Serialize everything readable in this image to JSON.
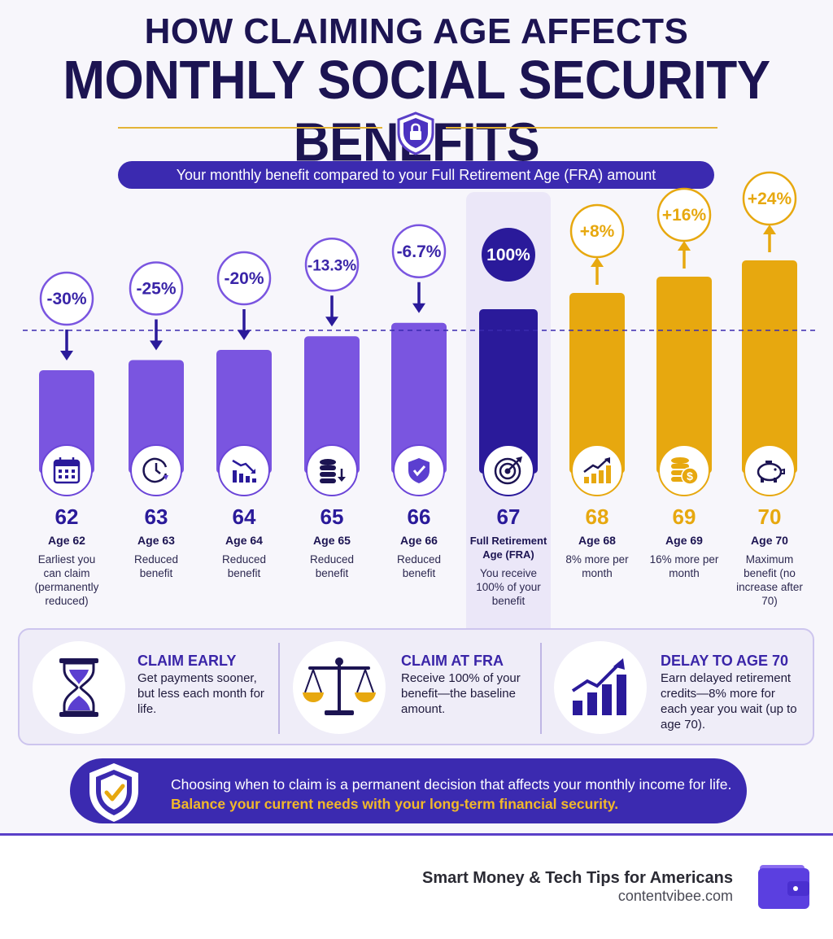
{
  "header": {
    "title_line1": "HOW CLAIMING AGE AFFECTS",
    "title_line2": "MONTHLY SOCIAL SECURITY BENEFITS",
    "subtitle": "Your monthly benefit compared to your Full Retirement Age (FRA) amount"
  },
  "chart_data": {
    "type": "bar",
    "categories": [
      "62",
      "63",
      "64",
      "65",
      "66",
      "67",
      "68",
      "69",
      "70"
    ],
    "values": [
      70,
      75,
      80,
      86.7,
      93.3,
      100,
      108,
      116,
      124
    ],
    "data_labels": [
      "-30%",
      "-25%",
      "-20%",
      "-13.3%",
      "-6.7%",
      "100%",
      "+8%",
      "+16%",
      "+24%"
    ],
    "reference_line": 100,
    "age_labels": [
      "Age 62",
      "Age 63",
      "Age 64",
      "Age 65",
      "Age 66",
      "Full Retirement Age (FRA)",
      "Age 68",
      "Age 69",
      "Age 70"
    ],
    "descriptions": [
      "Earliest you can claim (permanently reduced)",
      "Reduced benefit",
      "Reduced benefit",
      "Reduced benefit",
      "Reduced benefit",
      "You receive 100% of your benefit",
      "8% more per month",
      "16% more per month",
      "Maximum benefit (no increase after 70)"
    ],
    "icons": [
      "calendar-icon",
      "clock-icon",
      "declining-chart-icon",
      "coins-down-icon",
      "shield-check-icon",
      "target-icon",
      "rising-chart-icon",
      "dollar-coins-icon",
      "piggy-bank-icon"
    ],
    "colors": {
      "reduced": "#7a55e0",
      "fra": "#2a1a9a",
      "increased": "#e7a80f"
    }
  },
  "panel": {
    "items": [
      {
        "title": "CLAIM EARLY",
        "text": "Get payments sooner, but less each month for life.",
        "icon": "hourglass-icon"
      },
      {
        "title": "CLAIM AT FRA",
        "text": "Receive 100% of your benefit—the baseline amount.",
        "icon": "scale-icon"
      },
      {
        "title": "DELAY TO AGE 70",
        "text": "Earn delayed retirement credits—8% more for each year you wait (up to age 70).",
        "icon": "growth-chart-icon"
      }
    ]
  },
  "banner": {
    "line1": "Choosing when to claim is a permanent decision that affects your monthly income for life.",
    "line2": "Balance your current needs with your long-term financial security."
  },
  "footer": {
    "brand": "Smart Money & Tech Tips for Americans",
    "site": "contentvibee.com"
  }
}
